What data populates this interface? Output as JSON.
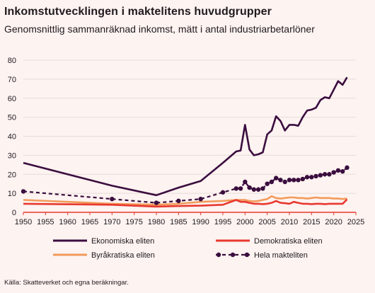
{
  "header": {
    "title": "Inkomstutvecklingen i maktelitens huvudgrupper",
    "subtitle": "Genomsnittlig sammanräknad inkomst, mätt i antal industriarbetarlöner"
  },
  "footer": {
    "source": "Källa: Skatteverket och egna beräkningar."
  },
  "colors": {
    "background": "#fdf3f1",
    "economic": "#3a0d3e",
    "democratic": "#e8392f",
    "bureaucratic": "#f29b5b",
    "total": "#3a0d3e",
    "grid": "#e6dcda",
    "axis": "#e8392f"
  },
  "chart_data": {
    "type": "line",
    "title": "Inkomstutvecklingen i maktelitens huvudgrupper",
    "subtitle": "Genomsnittlig sammanräknad inkomst, mätt i antal industriarbetarlöner",
    "xlabel": "",
    "ylabel": "",
    "xlim": [
      1950,
      2025
    ],
    "ylim": [
      0,
      80
    ],
    "xticks": [
      1950,
      1955,
      1960,
      1965,
      1970,
      1975,
      1980,
      1985,
      1990,
      1995,
      2000,
      2005,
      2010,
      2015,
      2020,
      2025
    ],
    "yticks": [
      0,
      10,
      20,
      30,
      40,
      50,
      60,
      70,
      80
    ],
    "grid": "horizontal",
    "legend_position": "bottom",
    "series": [
      {
        "name": "Ekonomiska eliten",
        "style": "solid",
        "x": [
          1950,
          1970,
          1980,
          1985,
          1990,
          1995,
          1998,
          1999,
          2000,
          2001,
          2002,
          2003,
          2004,
          2005,
          2006,
          2007,
          2008,
          2009,
          2010,
          2011,
          2012,
          2013,
          2014,
          2015,
          2016,
          2017,
          2018,
          2019,
          2020,
          2021,
          2022,
          2023
        ],
        "values": [
          26,
          14,
          9,
          13,
          16.5,
          26,
          32,
          32.5,
          46,
          33,
          30,
          30.5,
          31.5,
          41,
          43,
          50.5,
          48,
          43,
          46,
          46,
          45.5,
          50,
          53.5,
          54,
          55,
          59,
          60.5,
          60,
          64.5,
          69,
          67,
          71
        ]
      },
      {
        "name": "Demokratiska eliten",
        "style": "solid",
        "x": [
          1950,
          1970,
          1980,
          1985,
          1990,
          1995,
          1998,
          1999,
          2000,
          2001,
          2002,
          2003,
          2004,
          2005,
          2006,
          2007,
          2008,
          2009,
          2010,
          2011,
          2012,
          2013,
          2014,
          2015,
          2016,
          2017,
          2018,
          2019,
          2020,
          2021,
          2022,
          2023
        ],
        "values": [
          4.5,
          4,
          3,
          3.3,
          3.5,
          4,
          6.5,
          5.5,
          5.5,
          5,
          4.5,
          4.5,
          4.3,
          4.5,
          5,
          6,
          5,
          4.8,
          4.5,
          5.5,
          5,
          4.5,
          4.5,
          4.3,
          4.5,
          4.5,
          4.3,
          4.5,
          4.5,
          4.5,
          4.5,
          6.8
        ]
      },
      {
        "name": "Byråkratiska eliten",
        "style": "solid",
        "x": [
          1950,
          1970,
          1980,
          1985,
          1990,
          1995,
          1998,
          1999,
          2000,
          2001,
          2002,
          2003,
          2004,
          2005,
          2006,
          2007,
          2008,
          2009,
          2010,
          2011,
          2012,
          2013,
          2014,
          2015,
          2016,
          2017,
          2018,
          2019,
          2020,
          2021,
          2022,
          2023
        ],
        "values": [
          6.5,
          4.5,
          4,
          4.5,
          5.5,
          6,
          6.5,
          6.5,
          6.5,
          6,
          5.8,
          6,
          6.5,
          7,
          8.5,
          7.5,
          7.2,
          7.5,
          7.8,
          7.8,
          7.5,
          7.5,
          7.2,
          7.5,
          7.8,
          7.5,
          7.5,
          7.5,
          7.2,
          7.2,
          7,
          7.2
        ]
      },
      {
        "name": "Hela makteliten",
        "style": "dashed-markers",
        "x": [
          1950,
          1970,
          1980,
          1985,
          1990,
          1995,
          1998,
          1999,
          2000,
          2001,
          2002,
          2003,
          2004,
          2005,
          2006,
          2007,
          2008,
          2009,
          2010,
          2011,
          2012,
          2013,
          2014,
          2015,
          2016,
          2017,
          2018,
          2019,
          2020,
          2021,
          2022,
          2023
        ],
        "values": [
          11,
          7,
          5,
          6,
          7,
          10.5,
          12.5,
          12.5,
          16,
          13,
          12,
          12,
          12.5,
          15,
          16,
          18,
          17,
          16,
          17,
          17,
          17,
          17.5,
          18.5,
          18.5,
          19,
          19.5,
          20,
          20,
          21,
          22,
          21.5,
          23.5
        ]
      }
    ]
  }
}
